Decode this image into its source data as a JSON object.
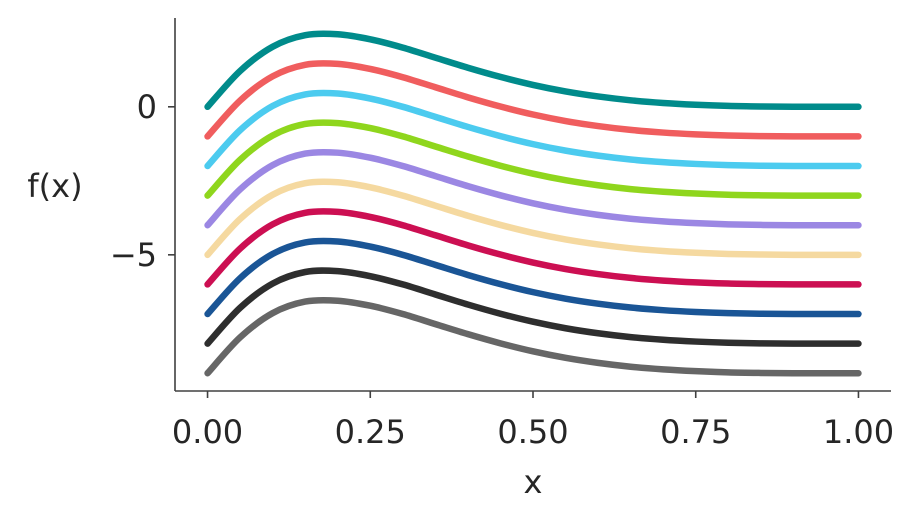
{
  "chart_data": {
    "type": "line",
    "title": "",
    "xlabel": "x",
    "ylabel": "f(x)",
    "xlim": [
      -0.05,
      1.05
    ],
    "ylim": [
      -9.6,
      3.0
    ],
    "xticks": [
      0.0,
      0.25,
      0.5,
      0.75,
      1.0
    ],
    "xtick_labels": [
      "0.00",
      "0.25",
      "0.50",
      "0.75",
      "1.00"
    ],
    "yticks": [
      0,
      -5
    ],
    "ytick_labels": [
      "0",
      "−5"
    ],
    "grid": false,
    "legend": "none",
    "x": [
      0.0,
      0.05,
      0.1,
      0.15,
      0.2,
      0.25,
      0.3,
      0.35,
      0.4,
      0.45,
      0.5,
      0.55,
      0.6,
      0.65,
      0.7,
      0.75,
      0.8,
      0.85,
      0.9,
      0.95,
      1.0
    ],
    "series": [
      {
        "color": "#008b8b",
        "offset": 0,
        "values": [
          0.0,
          1.21,
          2.03,
          2.42,
          2.45,
          2.28,
          2.0,
          1.66,
          1.32,
          1.01,
          0.74,
          0.52,
          0.35,
          0.22,
          0.13,
          0.07,
          0.03,
          0.01,
          0.0,
          0.0,
          0.0
        ]
      },
      {
        "color": "#f05d5e",
        "offset": -1,
        "values": [
          -1.0,
          0.21,
          1.03,
          1.42,
          1.45,
          1.28,
          1.0,
          0.66,
          0.32,
          0.01,
          -0.26,
          -0.48,
          -0.65,
          -0.78,
          -0.87,
          -0.93,
          -0.97,
          -0.99,
          -1.0,
          -1.0,
          -1.0
        ]
      },
      {
        "color": "#4ccbef",
        "offset": -2,
        "values": [
          -2.0,
          -0.79,
          0.03,
          0.42,
          0.45,
          0.28,
          0.0,
          -0.34,
          -0.68,
          -0.99,
          -1.26,
          -1.48,
          -1.65,
          -1.78,
          -1.87,
          -1.93,
          -1.97,
          -1.99,
          -2.0,
          -2.0,
          -2.0
        ]
      },
      {
        "color": "#8fd61d",
        "offset": -3,
        "values": [
          -3.0,
          -1.79,
          -0.97,
          -0.58,
          -0.55,
          -0.72,
          -1.0,
          -1.34,
          -1.68,
          -1.99,
          -2.26,
          -2.48,
          -2.65,
          -2.78,
          -2.87,
          -2.93,
          -2.97,
          -2.99,
          -3.0,
          -3.0,
          -3.0
        ]
      },
      {
        "color": "#9b87e3",
        "offset": -4,
        "values": [
          -4.0,
          -2.79,
          -1.97,
          -1.58,
          -1.55,
          -1.72,
          -2.0,
          -2.34,
          -2.68,
          -2.99,
          -3.26,
          -3.48,
          -3.65,
          -3.78,
          -3.87,
          -3.93,
          -3.97,
          -3.99,
          -4.0,
          -4.0,
          -4.0
        ]
      },
      {
        "color": "#f5d9a0",
        "offset": -5,
        "values": [
          -5.0,
          -3.79,
          -2.97,
          -2.58,
          -2.55,
          -2.72,
          -3.0,
          -3.34,
          -3.68,
          -3.99,
          -4.26,
          -4.48,
          -4.65,
          -4.78,
          -4.87,
          -4.93,
          -4.97,
          -4.99,
          -5.0,
          -5.0,
          -5.0
        ]
      },
      {
        "color": "#cc0f52",
        "offset": -6,
        "values": [
          -6.0,
          -4.79,
          -3.97,
          -3.58,
          -3.55,
          -3.72,
          -4.0,
          -4.34,
          -4.68,
          -4.99,
          -5.26,
          -5.48,
          -5.65,
          -5.78,
          -5.87,
          -5.93,
          -5.97,
          -5.99,
          -6.0,
          -6.0,
          -6.0
        ]
      },
      {
        "color": "#1a5596",
        "offset": -7,
        "values": [
          -7.0,
          -5.79,
          -4.97,
          -4.58,
          -4.55,
          -4.72,
          -5.0,
          -5.34,
          -5.68,
          -5.99,
          -6.26,
          -6.48,
          -6.65,
          -6.78,
          -6.87,
          -6.93,
          -6.97,
          -6.99,
          -7.0,
          -7.0,
          -7.0
        ]
      },
      {
        "color": "#2e2e2e",
        "offset": -8,
        "values": [
          -8.0,
          -6.79,
          -5.97,
          -5.58,
          -5.55,
          -5.72,
          -6.0,
          -6.34,
          -6.68,
          -6.99,
          -7.26,
          -7.48,
          -7.65,
          -7.78,
          -7.87,
          -7.93,
          -7.97,
          -7.99,
          -8.0,
          -8.0,
          -8.0
        ]
      },
      {
        "color": "#666666",
        "offset": -9,
        "values": [
          -9.0,
          -7.79,
          -6.97,
          -6.58,
          -6.55,
          -6.72,
          -7.0,
          -7.34,
          -7.68,
          -7.99,
          -8.26,
          -8.48,
          -8.65,
          -8.78,
          -8.87,
          -8.93,
          -8.97,
          -8.99,
          -9.0,
          -9.0,
          -9.0
        ]
      }
    ]
  }
}
